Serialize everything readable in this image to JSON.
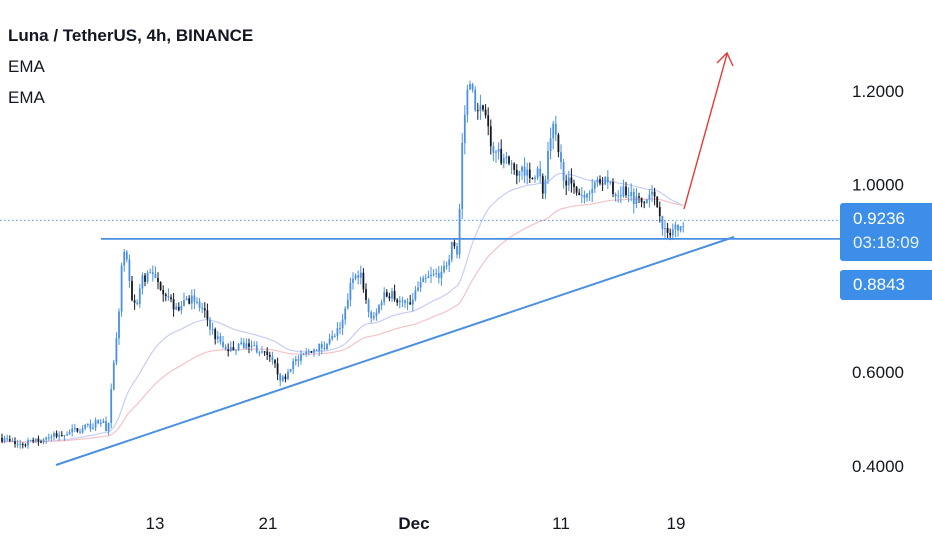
{
  "legend": {
    "title": "Luna / TetherUS, 4h, BINANCE",
    "indicator_1": "EMA",
    "indicator_2": "EMA"
  },
  "price_axis": {
    "current_price": "0.9236",
    "countdown": "03:18:09",
    "support_level": "0.8843"
  },
  "colors": {
    "candle": "#4a90e2",
    "candle_dark": "#131722",
    "trendline": "#4a90e2",
    "arrow": "#e53935",
    "ema_fast": "#c7cdf5",
    "ema_slow": "#f4c3c7",
    "badge": "#3c8ee8"
  },
  "chart_data": {
    "type": "candlestick",
    "symbol": "Luna / TetherUS",
    "interval": "4h",
    "exchange": "BINANCE",
    "y_ticks": [
      0.4,
      0.6,
      1.0,
      1.2
    ],
    "y_tick_labels": [
      "0.4000",
      "0.6000",
      "1.0000",
      "1.2000"
    ],
    "ylim": [
      0.36,
      1.32
    ],
    "x_ticks": [
      "13",
      "21",
      "Dec",
      "11",
      "19"
    ],
    "price_path": [
      [
        0,
        0.46
      ],
      [
        18,
        0.445
      ],
      [
        40,
        0.455
      ],
      [
        60,
        0.468
      ],
      [
        80,
        0.478
      ],
      [
        95,
        0.49
      ],
      [
        102,
        0.5
      ],
      [
        108,
        0.47
      ],
      [
        112,
        0.58
      ],
      [
        118,
        0.7
      ],
      [
        122,
        0.84
      ],
      [
        126,
        0.86
      ],
      [
        130,
        0.77
      ],
      [
        136,
        0.74
      ],
      [
        142,
        0.8
      ],
      [
        150,
        0.81
      ],
      [
        158,
        0.79
      ],
      [
        166,
        0.77
      ],
      [
        176,
        0.73
      ],
      [
        186,
        0.76
      ],
      [
        196,
        0.75
      ],
      [
        206,
        0.72
      ],
      [
        214,
        0.68
      ],
      [
        224,
        0.65
      ],
      [
        236,
        0.65
      ],
      [
        246,
        0.66
      ],
      [
        258,
        0.65
      ],
      [
        268,
        0.63
      ],
      [
        276,
        0.61
      ],
      [
        282,
        0.58
      ],
      [
        292,
        0.62
      ],
      [
        302,
        0.63
      ],
      [
        312,
        0.65
      ],
      [
        322,
        0.655
      ],
      [
        332,
        0.67
      ],
      [
        342,
        0.7
      ],
      [
        350,
        0.78
      ],
      [
        356,
        0.82
      ],
      [
        362,
        0.8
      ],
      [
        368,
        0.73
      ],
      [
        374,
        0.71
      ],
      [
        382,
        0.76
      ],
      [
        392,
        0.77
      ],
      [
        400,
        0.75
      ],
      [
        408,
        0.74
      ],
      [
        418,
        0.78
      ],
      [
        428,
        0.8
      ],
      [
        438,
        0.81
      ],
      [
        446,
        0.83
      ],
      [
        452,
        0.87
      ],
      [
        458,
        0.86
      ],
      [
        462,
        1.08
      ],
      [
        466,
        1.18
      ],
      [
        470,
        1.23
      ],
      [
        474,
        1.17
      ],
      [
        480,
        1.16
      ],
      [
        486,
        1.13
      ],
      [
        494,
        1.07
      ],
      [
        504,
        1.05
      ],
      [
        514,
        1.03
      ],
      [
        522,
        1.04
      ],
      [
        530,
        1.02
      ],
      [
        538,
        1.03
      ],
      [
        544,
        0.98
      ],
      [
        550,
        1.1
      ],
      [
        554,
        1.12
      ],
      [
        558,
        1.06
      ],
      [
        564,
        1.02
      ],
      [
        572,
        0.99
      ],
      [
        582,
        0.98
      ],
      [
        592,
        1.0
      ],
      [
        602,
        1.01
      ],
      [
        612,
        0.99
      ],
      [
        622,
        0.985
      ],
      [
        632,
        0.975
      ],
      [
        642,
        0.96
      ],
      [
        652,
        0.975
      ],
      [
        660,
        0.945
      ],
      [
        664,
        0.9
      ],
      [
        668,
        0.89
      ],
      [
        672,
        0.9
      ],
      [
        678,
        0.915
      ],
      [
        684,
        0.925
      ]
    ],
    "annotations": {
      "resistance_level": 0.8843,
      "current_price": 0.9236,
      "ascending_support": true,
      "projection_arrow": "up"
    }
  }
}
